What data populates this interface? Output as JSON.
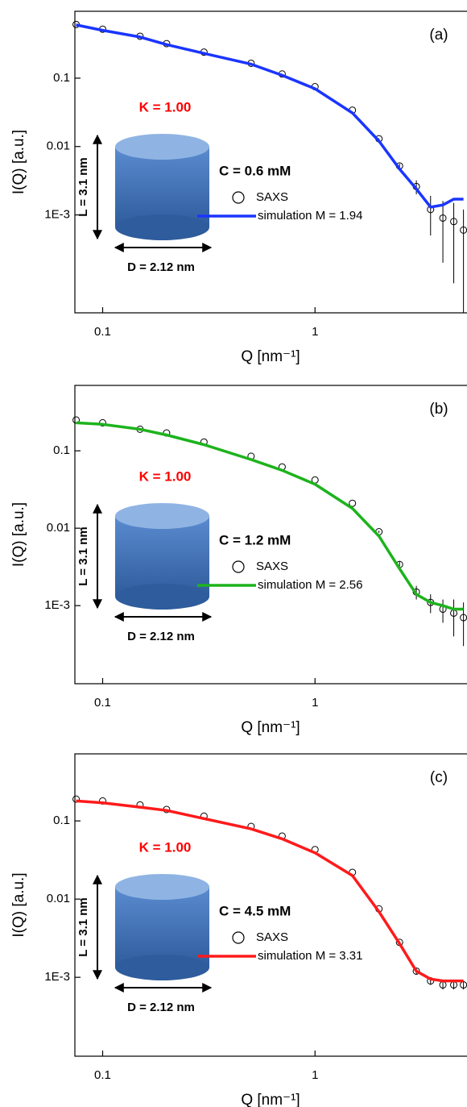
{
  "chart_data": [
    {
      "type": "line",
      "title": "(a)",
      "x_label": "Q [nm⁻¹]",
      "y_label": "I(Q) [a.u.]",
      "log_x": true,
      "log_y": true,
      "k_label": "K = 1.00",
      "c_label": "C = 0.6 mM",
      "l_label": "L = 3.1 nm",
      "d_label": "D = 2.12 nm",
      "x": [
        0.075,
        0.1,
        0.15,
        0.2,
        0.3,
        0.5,
        0.7,
        1,
        1.5,
        2,
        2.5,
        3,
        3.5,
        4,
        4.5,
        5
      ],
      "xlim": [
        0.074,
        5.15
      ],
      "xticks": [
        0.1,
        1
      ],
      "ylim": [
        3.7e-05,
        0.95
      ],
      "yticks": [
        0.1,
        0.01,
        {
          "value": 0.001,
          "label": "1E-3"
        }
      ],
      "series": [
        {
          "name": "SAXS",
          "color": "#000000",
          "values": [
            0.61,
            0.52,
            0.41,
            0.32,
            0.24,
            0.165,
            0.115,
            0.075,
            0.034,
            0.013,
            0.0052,
            0.0026,
            0.0012,
            0.0009,
            0.0008,
            0.0006
          ],
          "errors": [
            0,
            0,
            0,
            0,
            0,
            0,
            0,
            0,
            0,
            0.0002,
            0.0004,
            0.0006,
            0.0007,
            0.0007,
            0.0007,
            0.0006
          ]
        },
        {
          "name": "simulation M = 1.94",
          "color": "#1a35ff",
          "values": [
            0.6,
            0.5,
            0.4,
            0.31,
            0.23,
            0.16,
            0.11,
            0.07,
            0.031,
            0.012,
            0.0047,
            0.0024,
            0.0013,
            0.0014,
            0.0017,
            0.0017
          ]
        }
      ]
    },
    {
      "type": "line",
      "title": "(b)",
      "x_label": "Q [nm⁻¹]",
      "y_label": "I(Q) [a.u.]",
      "log_x": true,
      "log_y": true,
      "k_label": "K = 1.00",
      "c_label": "C = 1.2 mM",
      "l_label": "L = 3.1 nm",
      "d_label": "D = 2.12 nm",
      "x": [
        0.075,
        0.1,
        0.15,
        0.2,
        0.3,
        0.5,
        0.7,
        1,
        1.5,
        2,
        2.5,
        3,
        3.5,
        4,
        4.5,
        5
      ],
      "xlim": [
        0.074,
        5.15
      ],
      "xticks": [
        0.1,
        1
      ],
      "ylim": [
        9.8e-05,
        0.7
      ],
      "yticks": [
        0.1,
        0.01,
        {
          "value": 0.001,
          "label": "1E-3"
        }
      ],
      "series": [
        {
          "name": "SAXS",
          "color": "#000000",
          "values": [
            0.25,
            0.23,
            0.19,
            0.17,
            0.13,
            0.085,
            0.062,
            0.042,
            0.021,
            0.009,
            0.0034,
            0.0015,
            0.0011,
            0.0009,
            0.0008,
            0.0007
          ],
          "errors": [
            0,
            0,
            0,
            0,
            0,
            0,
            0,
            0,
            0,
            0.0003,
            0.0003,
            0.0003,
            0.0003,
            0.0003,
            0.0004,
            0.0004
          ]
        },
        {
          "name": "simulation M = 2.56",
          "color": "#1db31d",
          "values": [
            0.23,
            0.22,
            0.19,
            0.16,
            0.12,
            0.077,
            0.056,
            0.037,
            0.018,
            0.0079,
            0.003,
            0.0014,
            0.0011,
            0.001,
            0.0009,
            0.0009
          ]
        }
      ]
    },
    {
      "type": "line",
      "title": "(c)",
      "x_label": "Q [nm⁻¹]",
      "y_label": "I(Q) [a.u.]",
      "log_x": true,
      "log_y": true,
      "k_label": "K = 1.00",
      "c_label": "C = 4.5 mM",
      "l_label": "L = 3.1 nm",
      "d_label": "D = 2.12 nm",
      "x": [
        0.075,
        0.1,
        0.15,
        0.2,
        0.3,
        0.5,
        0.7,
        1,
        1.5,
        2,
        2.5,
        3,
        3.5,
        4,
        4.5,
        5
      ],
      "xlim": [
        0.074,
        5.15
      ],
      "xticks": [
        0.1,
        1
      ],
      "ylim": [
        9.8e-05,
        0.72
      ],
      "yticks": [
        0.1,
        0.01,
        {
          "value": 0.001,
          "label": "1E-3"
        }
      ],
      "series": [
        {
          "name": "SAXS",
          "color": "#000000",
          "values": [
            0.19,
            0.18,
            0.16,
            0.14,
            0.115,
            0.085,
            0.064,
            0.043,
            0.022,
            0.0075,
            0.0028,
            0.0012,
            0.0009,
            0.0008,
            0.0008,
            0.0008
          ],
          "errors": [
            0,
            0,
            0,
            0,
            0,
            0,
            0,
            0,
            0,
            0,
            0.0001,
            0.0001,
            0.0001,
            0.0001,
            0.0001,
            0.0001
          ]
        },
        {
          "name": "simulation M = 3.31",
          "color": "#ff1a1a",
          "values": [
            0.18,
            0.17,
            0.15,
            0.136,
            0.107,
            0.079,
            0.059,
            0.039,
            0.02,
            0.0069,
            0.0027,
            0.0012,
            0.00095,
            0.0009,
            0.0009,
            0.0009
          ]
        }
      ]
    }
  ]
}
